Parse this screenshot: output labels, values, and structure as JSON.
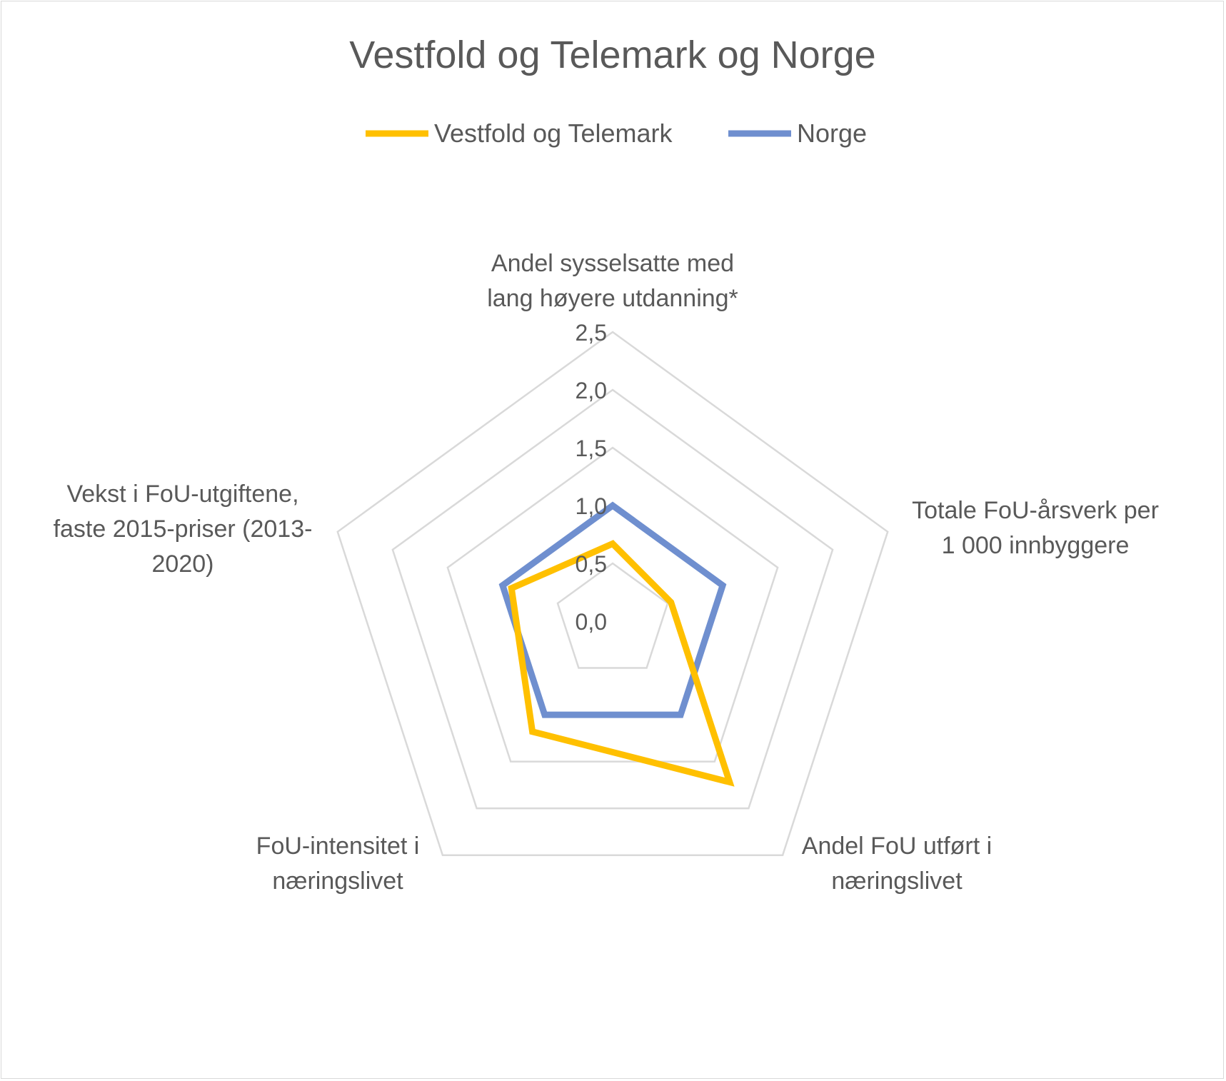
{
  "chart_data": {
    "type": "radar",
    "title": "Vestfold og Telemark og Norge",
    "categories": [
      [
        "Andel sysselsatte med",
        "lang høyere utdanning*"
      ],
      [
        "Totale FoU-årsverk per",
        "1 000 innbyggere"
      ],
      [
        "Andel FoU utført i",
        "næringslivet"
      ],
      [
        "FoU-intensitet i",
        "næringslivet"
      ],
      [
        "Vekst i FoU-utgiftene,",
        "faste 2015-priser (2013-",
        "2020)"
      ]
    ],
    "tick_labels": [
      "0,0",
      "0,5",
      "1,0",
      "1,5",
      "2,0",
      "2,5"
    ],
    "ticks": [
      0,
      0.5,
      1.0,
      1.5,
      2.0,
      2.5
    ],
    "rlim": [
      0,
      2.5
    ],
    "legend_position": "top",
    "series": [
      {
        "name": "Vestfold og Telemark",
        "color": "#ffc000",
        "values": [
          0.67,
          0.53,
          1.72,
          1.18,
          0.92
        ]
      },
      {
        "name": "Norge",
        "color": "#6f8fcf",
        "values": [
          1.0,
          1.0,
          1.0,
          1.0,
          1.0
        ]
      }
    ]
  }
}
